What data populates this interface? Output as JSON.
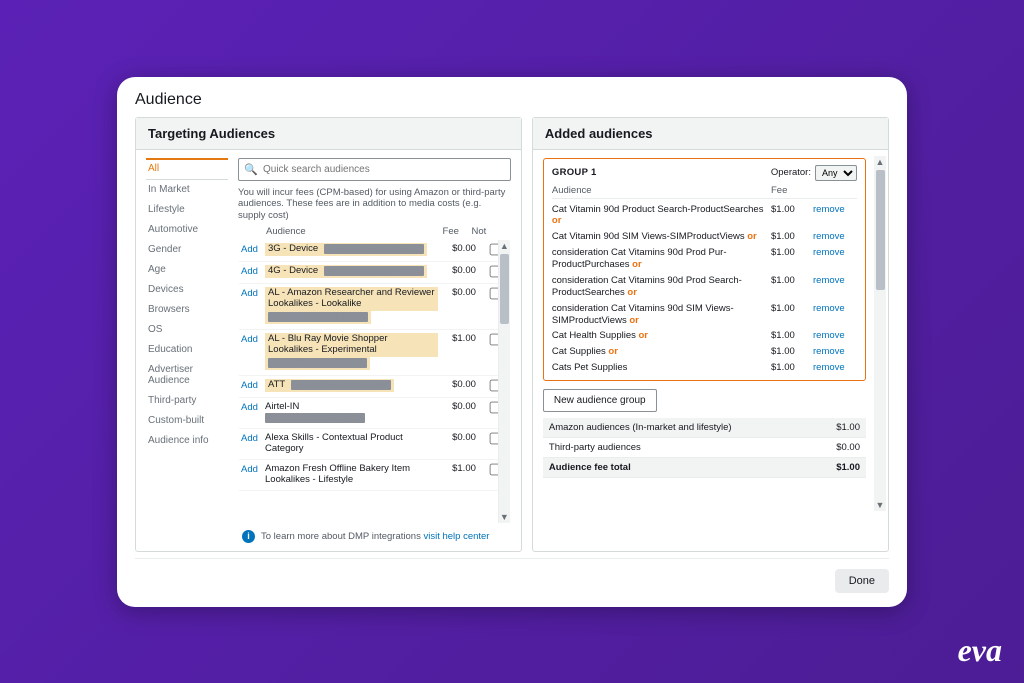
{
  "page": {
    "title": "Audience"
  },
  "targeting": {
    "header": "Targeting Audiences",
    "tabs": [
      "All",
      "In Market",
      "Lifestyle",
      "Automotive",
      "Gender",
      "Age",
      "Devices",
      "Browsers",
      "OS",
      "Education",
      "Advertiser Audience",
      "Third-party",
      "Custom-built",
      "Audience info"
    ],
    "active_tab": 0,
    "search_placeholder": "Quick search audiences",
    "fee_note": "You will incur fees (CPM-based) for using Amazon or third-party audiences. These fees are in addition to media costs (e.g. supply cost)",
    "cols": {
      "add": "Add",
      "audience": "Audience",
      "fee": "Fee",
      "not": "Not"
    },
    "rows": [
      {
        "name": "3G - Device",
        "id": "4000033627052557904",
        "fee": "$0.00",
        "hl": true
      },
      {
        "name": "4G - Device",
        "id": "3635007131532441158",
        "fee": "$0.00",
        "hl": true
      },
      {
        "name": "AL - Amazon Researcher and Reviewer Lookalikes - Lookalike",
        "id": "4170045545149035168",
        "fee": "$0.00",
        "hl": true
      },
      {
        "name": "AL - Blu Ray Movie Shopper Lookalikes - Experimental",
        "id": "3045526440415911955",
        "fee": "$1.00",
        "hl": true
      },
      {
        "name": "ATT",
        "id": "9703068980864739119",
        "fee": "$0.00",
        "hl": true
      },
      {
        "name": "Airtel-IN",
        "id": "4005571207470066376",
        "fee": "$0.00",
        "hl": false
      },
      {
        "name": "Alexa Skills - Contextual Product Category",
        "id": "",
        "fee": "$0.00",
        "hl": false
      },
      {
        "name": "Amazon Fresh Offline Bakery Item Lookalikes - Lifestyle",
        "id": "",
        "fee": "$1.00",
        "hl": false
      }
    ],
    "info_text": "To learn more about DMP integrations",
    "info_link": "visit help center"
  },
  "added": {
    "header": "Added audiences",
    "group_label": "GROUP 1",
    "operator_label": "Operator:",
    "operator_value": "Any",
    "cols": {
      "audience": "Audience",
      "fee": "Fee"
    },
    "remove_label": "remove",
    "or_label": "or",
    "rows": [
      {
        "name": "Cat Vitamin 90d Product Search-ProductSearches",
        "fee": "$1.00",
        "or": true
      },
      {
        "name": "Cat Vitamin 90d SIM Views-SIMProductViews",
        "fee": "$1.00",
        "or": true
      },
      {
        "name": "consideration Cat Vitamins 90d Prod Pur-ProductPurchases",
        "fee": "$1.00",
        "or": true
      },
      {
        "name": "consideration Cat Vitamins 90d Prod Search-ProductSearches",
        "fee": "$1.00",
        "or": true
      },
      {
        "name": "consideration Cat Vitamins 90d SIM Views-SIMProductViews",
        "fee": "$1.00",
        "or": true
      },
      {
        "name": "Cat Health Supplies",
        "fee": "$1.00",
        "or": true
      },
      {
        "name": "Cat Supplies",
        "fee": "$1.00",
        "or": true
      },
      {
        "name": "Cats Pet Supplies",
        "fee": "$1.00",
        "or": false
      }
    ],
    "new_group_btn": "New audience group",
    "totals": [
      {
        "label": "Amazon audiences (In-market and lifestyle)",
        "value": "$1.00"
      },
      {
        "label": "Third-party audiences",
        "value": "$0.00"
      },
      {
        "label": "Audience fee total",
        "value": "$1.00"
      }
    ]
  },
  "footer": {
    "done": "Done"
  },
  "brand": "eva",
  "colors": {
    "accent": "#ec7211",
    "link": "#0073bb",
    "bg_purple": "#4c1d95",
    "highlight": "#f7e3b8"
  }
}
